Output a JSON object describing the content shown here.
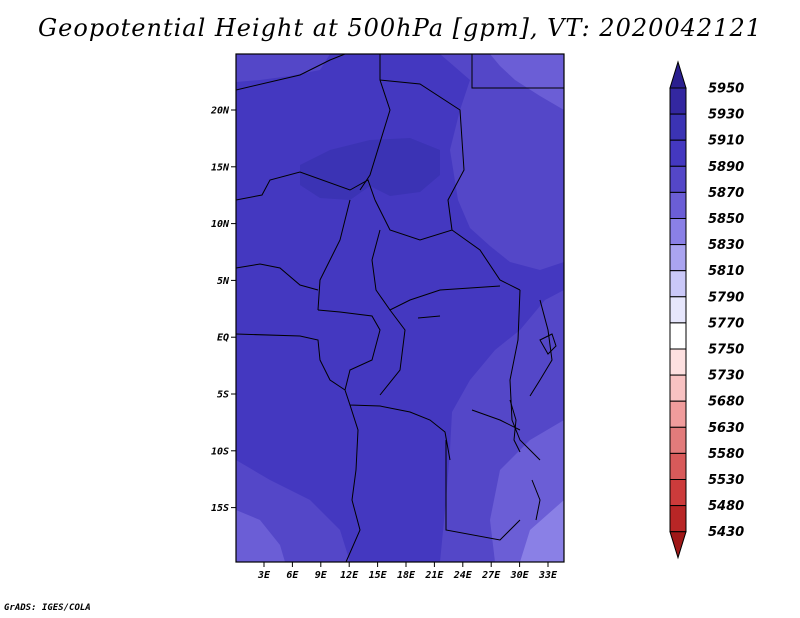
{
  "title": "Geopotential Height at 500hPa [gpm], VT: 2020042121",
  "credit": "GrADS: IGES/COLA",
  "map": {
    "lat_ticks": [
      "20N",
      "15N",
      "10N",
      "5N",
      "EQ",
      "5S",
      "10S",
      "15S"
    ],
    "lon_ticks": [
      "3E",
      "6E",
      "9E",
      "12E",
      "15E",
      "18E",
      "21E",
      "24E",
      "27E",
      "30E",
      "33E"
    ]
  },
  "colorbar": {
    "levels": [
      "5950",
      "5930",
      "5910",
      "5890",
      "5870",
      "5850",
      "5830",
      "5810",
      "5790",
      "5770",
      "5750",
      "5730",
      "5680",
      "5630",
      "5580",
      "5530",
      "5480",
      "5430"
    ],
    "colors": [
      "#2a1f8f",
      "#3327a0",
      "#3b33b4",
      "#4438c0",
      "#5447c8",
      "#6b5ed6",
      "#8a80e6",
      "#aaa4f0",
      "#cac8f8",
      "#e6e6fc",
      "#ffffff",
      "#fde0e0",
      "#f8c2c2",
      "#f09c9c",
      "#e27b7b",
      "#d85a5a",
      "#cc3b3b",
      "#b82626",
      "#a01818"
    ]
  }
}
